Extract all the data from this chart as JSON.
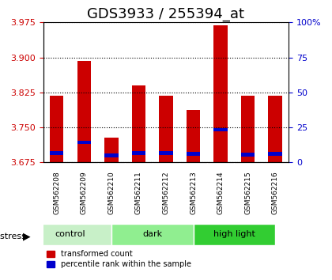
{
  "title": "GDS3933 / 255394_at",
  "samples": [
    "GSM562208",
    "GSM562209",
    "GSM562210",
    "GSM562211",
    "GSM562212",
    "GSM562213",
    "GSM562214",
    "GSM562215",
    "GSM562216"
  ],
  "red_values": [
    3.818,
    3.893,
    3.728,
    3.84,
    3.818,
    3.788,
    3.968,
    3.818,
    3.818
  ],
  "blue_values": [
    3.695,
    3.718,
    3.69,
    3.695,
    3.695,
    3.693,
    3.745,
    3.692,
    3.693
  ],
  "ylim_left": [
    3.675,
    3.975
  ],
  "ylim_right": [
    0,
    100
  ],
  "yticks_left": [
    3.675,
    3.75,
    3.825,
    3.9,
    3.975
  ],
  "yticks_right": [
    0,
    25,
    50,
    75,
    100
  ],
  "groups": [
    {
      "label": "control",
      "indices": [
        0,
        1,
        2
      ],
      "color": "#c8f0c8"
    },
    {
      "label": "dark",
      "indices": [
        3,
        4,
        5
      ],
      "color": "#90ee90"
    },
    {
      "label": "high light",
      "indices": [
        6,
        7,
        8
      ],
      "color": "#32cd32"
    }
  ],
  "bar_width": 0.5,
  "red_color": "#cc0000",
  "blue_color": "#0000cc",
  "background_color": "#ffffff",
  "plot_bg_color": "#ffffff",
  "label_area_color": "#d3d3d3",
  "title_fontsize": 13,
  "axis_label_color_left": "#cc0000",
  "axis_label_color_right": "#0000cc"
}
